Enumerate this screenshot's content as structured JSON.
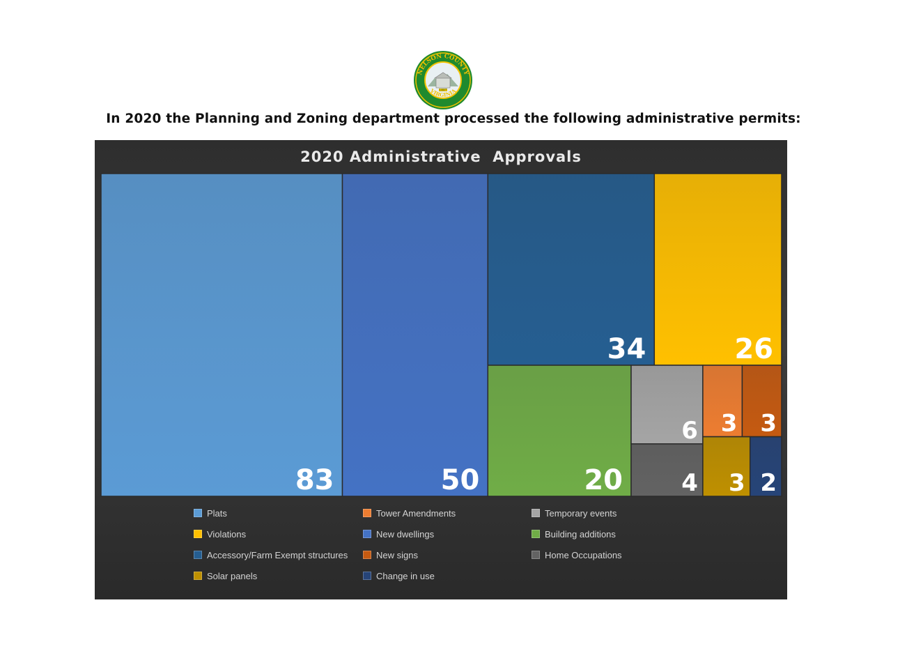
{
  "page": {
    "heading": "In 2020 the Planning and Zoning department processed the following administrative permits:",
    "seal": {
      "name": "nelson-county-seal",
      "text_top": "NELSON COUNTY",
      "text_bottom": "VIRGINIA",
      "year": "1807",
      "colors": {
        "ring": "#1f8a2e",
        "gold": "#f2c200",
        "inner": "#e9f0f3"
      }
    }
  },
  "chart_data": {
    "type": "treemap",
    "title": "2020 Administrative  Approvals",
    "legend_position": "bottom",
    "items": [
      {
        "name": "Plats",
        "value": 83,
        "color": "#5b9bd5"
      },
      {
        "name": "New dwellings",
        "value": 50,
        "color": "#4472c4"
      },
      {
        "name": "Accessory/Farm Exempt structures",
        "value": 34,
        "color": "#255e91"
      },
      {
        "name": "Violations",
        "value": 26,
        "color": "#ffc000"
      },
      {
        "name": "Building additions",
        "value": 20,
        "color": "#70ad47"
      },
      {
        "name": "Temporary events",
        "value": 6,
        "color": "#a5a5a5"
      },
      {
        "name": "Tower Amendments",
        "value": 3,
        "color": "#ed7d31"
      },
      {
        "name": "New signs",
        "value": 3,
        "color": "#c55a11"
      },
      {
        "name": "Home Occupations",
        "value": 4,
        "color": "#636363"
      },
      {
        "name": "Solar panels",
        "value": 3,
        "color": "#bf9000"
      },
      {
        "name": "Change in use",
        "value": 2,
        "color": "#264478"
      }
    ],
    "legend_order": [
      "Plats",
      "Tower Amendments",
      "Temporary events",
      "Violations",
      "New dwellings",
      "Building additions",
      "Accessory/Farm Exempt structures",
      "New signs",
      "Home Occupations",
      "Solar panels",
      "Change in use"
    ]
  }
}
